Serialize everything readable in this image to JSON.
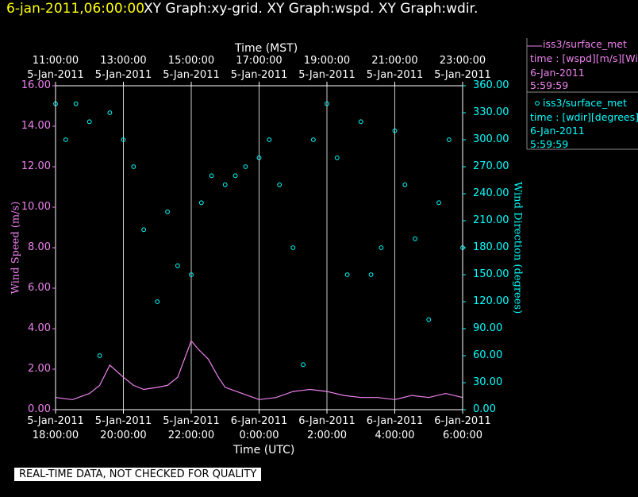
{
  "header": {
    "date_time": "6-jan-2011,06:00:00",
    "graph_names": "XY Graph:xy-grid.  XY Graph:wspd.  XY Graph:wdir."
  },
  "legend": {
    "wspd": {
      "line1": "iss3/surface_met",
      "line2": "time : [wspd][m/s][Wind",
      "line3": "6-Jan-2011",
      "line4": "5:59:59"
    },
    "wdir": {
      "line1": "iss3/surface_met",
      "line2": "time : [wdir][degrees][V",
      "line3": "6-Jan-2011",
      "line4": "5:59:59"
    }
  },
  "footer": {
    "qc_notice": "REAL-TIME DATA, NOT CHECKED FOR QUALITY"
  },
  "chart_data": {
    "type": "scatter",
    "top_axis": {
      "title": "Time (MST)",
      "ticks": [
        {
          "time": "11:00:00",
          "date": "5-Jan-2011"
        },
        {
          "time": "13:00:00",
          "date": "5-Jan-2011"
        },
        {
          "time": "15:00:00",
          "date": "5-Jan-2011"
        },
        {
          "time": "17:00:00",
          "date": "5-Jan-2011"
        },
        {
          "time": "19:00:00",
          "date": "5-Jan-2011"
        },
        {
          "time": "21:00:00",
          "date": "5-Jan-2011"
        },
        {
          "time": "23:00:00",
          "date": "5-Jan-2011"
        }
      ]
    },
    "bottom_axis": {
      "title": "Time (UTC)",
      "ticks": [
        {
          "date": "5-Jan-2011",
          "time": "18:00:00"
        },
        {
          "date": "5-Jan-2011",
          "time": "20:00:00"
        },
        {
          "date": "5-Jan-2011",
          "time": "22:00:00"
        },
        {
          "date": "6-Jan-2011",
          "time": "0:00:00"
        },
        {
          "date": "6-Jan-2011",
          "time": "2:00:00"
        },
        {
          "date": "6-Jan-2011",
          "time": "4:00:00"
        },
        {
          "date": "6-Jan-2011",
          "time": "6:00:00"
        }
      ]
    },
    "x_range_utc": [
      "2011-01-05 18:00",
      "2011-01-06 06:00"
    ],
    "left_axis": {
      "title": "Wind Speed (m/s)",
      "ylim": [
        0,
        16
      ],
      "tick_labels": [
        "0.00",
        "2.00",
        "4.00",
        "6.00",
        "8.00",
        "10.00",
        "12.00",
        "14.00",
        "16.00"
      ]
    },
    "right_axis": {
      "title": "Wind Direction (degrees)",
      "ylim": [
        0,
        360
      ],
      "tick_labels": [
        "0.00",
        "30.00",
        "60.00",
        "90.00",
        "120.00",
        "150.00",
        "180.00",
        "210.00",
        "240.00",
        "270.00",
        "300.00",
        "330.00",
        "360.00"
      ]
    },
    "grid": "vertical lines at top-axis ticks",
    "series": [
      {
        "name": "iss3/surface_met wspd",
        "axis": "left",
        "style": "line",
        "color": "#ee82ee",
        "x_hours_utc": [
          18.0,
          18.5,
          19.0,
          19.3,
          19.6,
          20.0,
          20.3,
          20.6,
          21.0,
          21.3,
          21.6,
          22.0,
          22.2,
          22.5,
          22.8,
          23.0,
          23.5,
          24.0,
          24.5,
          25.0,
          25.5,
          26.0,
          26.5,
          27.0,
          27.5,
          28.0,
          28.5,
          29.0,
          29.5,
          30.0
        ],
        "values": [
          0.6,
          0.5,
          0.8,
          1.2,
          2.2,
          1.6,
          1.2,
          1.0,
          1.1,
          1.2,
          1.6,
          3.4,
          3.0,
          2.5,
          1.6,
          1.1,
          0.8,
          0.5,
          0.6,
          0.9,
          1.0,
          0.9,
          0.7,
          0.6,
          0.6,
          0.5,
          0.7,
          0.6,
          0.8,
          0.6
        ]
      },
      {
        "name": "iss3/surface_met wdir",
        "axis": "right",
        "style": "circles",
        "color": "#00ffff",
        "x_hours_utc": [
          18.0,
          18.3,
          18.6,
          19.0,
          19.3,
          19.6,
          20.0,
          20.3,
          20.6,
          21.0,
          21.3,
          21.6,
          22.0,
          22.3,
          22.6,
          23.0,
          23.3,
          23.6,
          24.0,
          24.3,
          24.6,
          25.0,
          25.3,
          25.6,
          26.0,
          26.3,
          26.6,
          27.0,
          27.3,
          27.6,
          28.0,
          28.3,
          28.6,
          29.0,
          29.3,
          29.6,
          30.0
        ],
        "values": [
          340,
          300,
          340,
          320,
          60,
          330,
          300,
          270,
          200,
          120,
          220,
          160,
          150,
          230,
          260,
          250,
          260,
          270,
          280,
          300,
          250,
          180,
          50,
          300,
          340,
          280,
          150,
          320,
          150,
          180,
          310,
          250,
          190,
          100,
          230,
          300,
          180
        ]
      }
    ]
  }
}
